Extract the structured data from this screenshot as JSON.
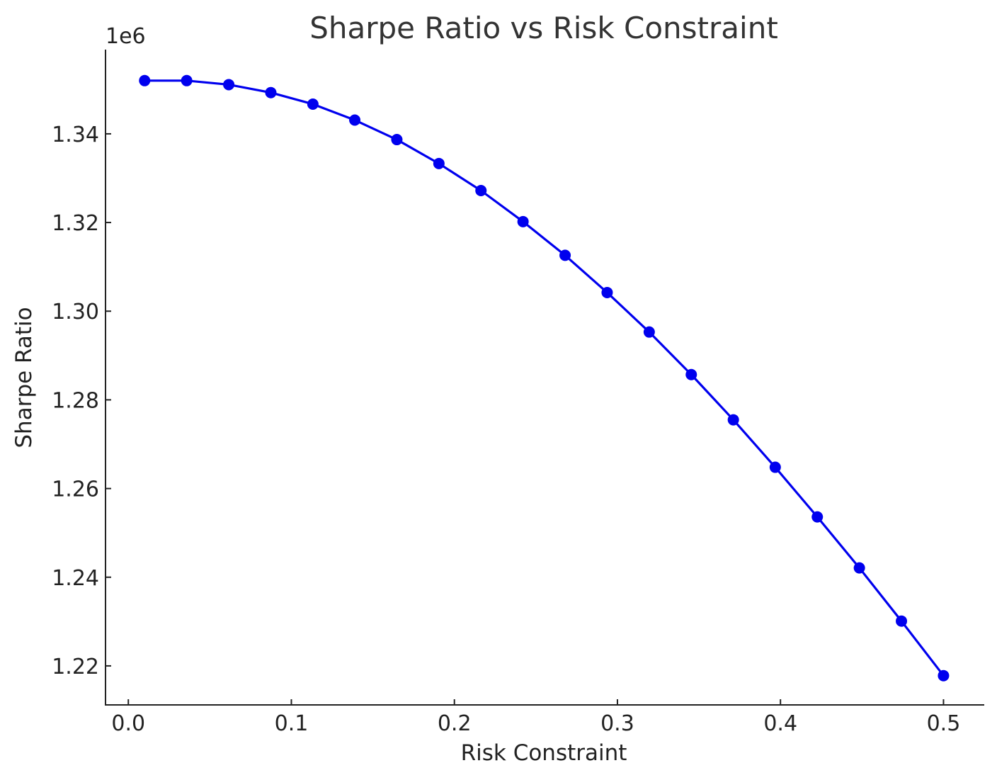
{
  "chart_data": {
    "type": "line",
    "title": "Sharpe Ratio vs Risk Constraint",
    "xlabel": "Risk Constraint",
    "ylabel": "Sharpe Ratio",
    "y_offset_label": "1e6",
    "xlim": [
      -0.014,
      0.525
    ],
    "ylim": [
      1.2112,
      1.359
    ],
    "x_ticks": [
      0.0,
      0.1,
      0.2,
      0.3,
      0.4,
      0.5
    ],
    "x_tick_labels": [
      "0.0",
      "0.1",
      "0.2",
      "0.3",
      "0.4",
      "0.5"
    ],
    "y_ticks": [
      1.22,
      1.24,
      1.26,
      1.28,
      1.3,
      1.32,
      1.34
    ],
    "y_tick_labels": [
      "1.22",
      "1.24",
      "1.26",
      "1.28",
      "1.30",
      "1.32",
      "1.34"
    ],
    "grid": false,
    "color": "#0000ee",
    "series": [
      {
        "x": [
          0.01,
          0.0358,
          0.0616,
          0.0874,
          0.1132,
          0.1389,
          0.1647,
          0.1905,
          0.2163,
          0.2421,
          0.2679,
          0.2937,
          0.3195,
          0.3453,
          0.3711,
          0.3968,
          0.4226,
          0.4484,
          0.4742,
          0.5
        ],
        "y": [
          1.352,
          1.352,
          1.3511,
          1.3493,
          1.3467,
          1.3431,
          1.3387,
          1.3333,
          1.3272,
          1.3202,
          1.3126,
          1.3042,
          1.2953,
          1.2857,
          1.2755,
          1.2648,
          1.2536,
          1.2421,
          1.2301,
          1.2178
        ]
      }
    ]
  }
}
